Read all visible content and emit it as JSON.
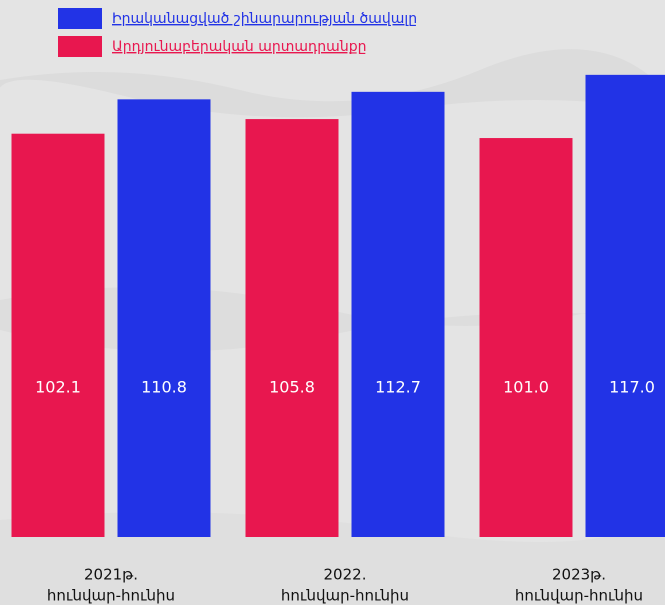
{
  "chart_data": {
    "type": "bar",
    "categories": [
      [
        "2021թ.",
        "հունվար-հունիս"
      ],
      [
        "2022.",
        "հունվար-հունիս"
      ],
      [
        "2023թ.",
        "հունվար-հունիս"
      ]
    ],
    "series": [
      {
        "name": "Արդյունաբերական արտադրանքը",
        "color": "#e8174f",
        "values": [
          102.1,
          105.8,
          101.0
        ],
        "value_labels": [
          "102.1",
          "105.8",
          "101.0"
        ]
      },
      {
        "name": "Իրականացված շինարարության ծավալը",
        "color": "#2233e6",
        "values": [
          110.8,
          112.7,
          117.0
        ],
        "value_labels": [
          "110.8",
          "112.7",
          "117.0"
        ]
      }
    ],
    "ylim": [
      0,
      120
    ]
  }
}
